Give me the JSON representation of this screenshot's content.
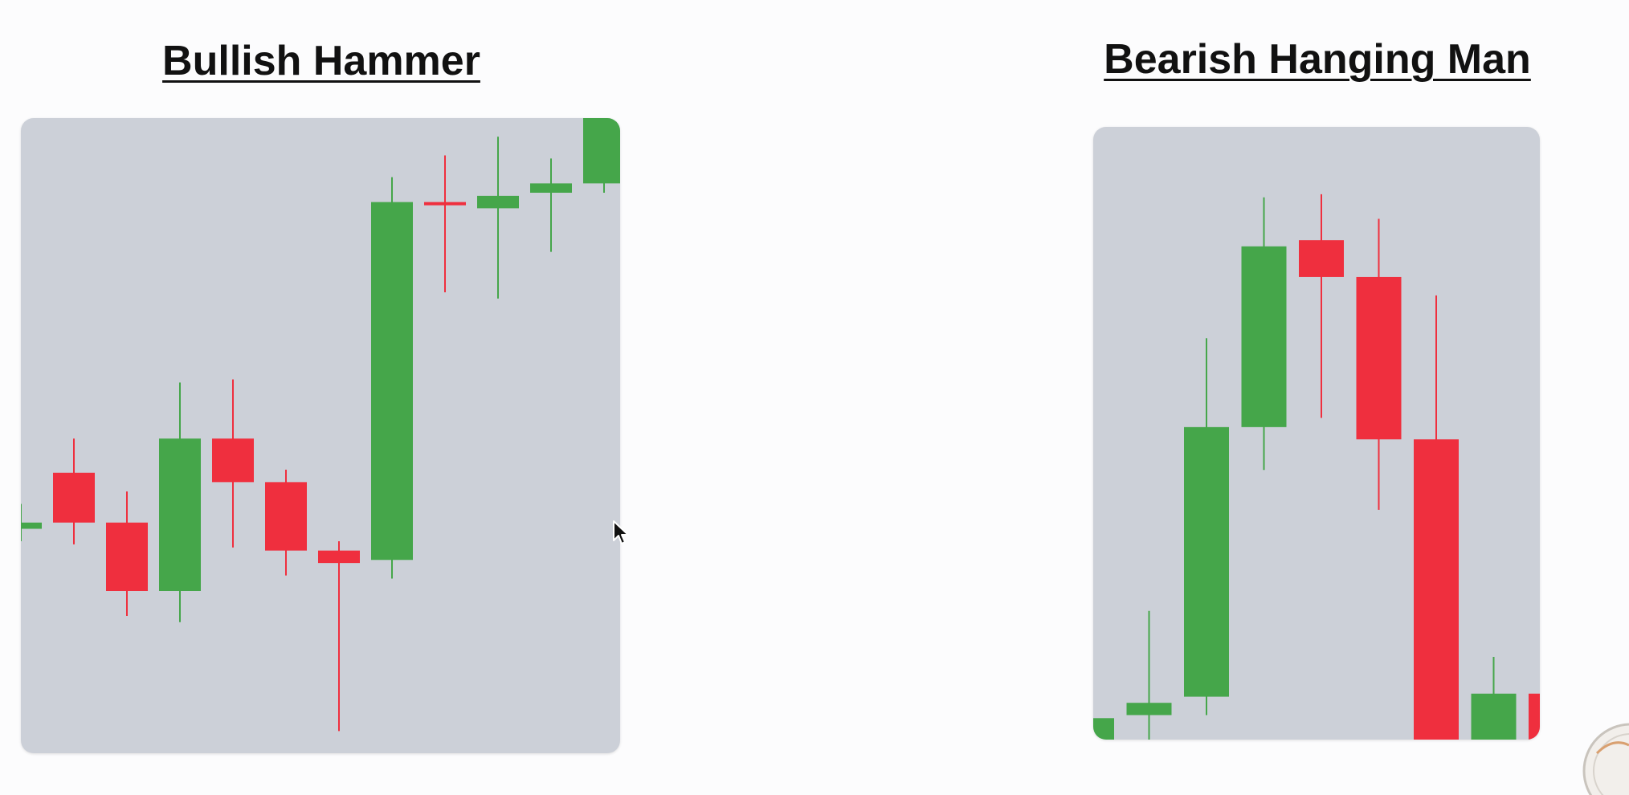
{
  "colors": {
    "bullish": "#45a64a",
    "bearish": "#ef2f3e",
    "panel_background": "#ccd0d8",
    "page_background": "#fcfcfd"
  },
  "chart_data": [
    {
      "type": "candlestick",
      "title": "Bullish Hammer",
      "xlabel": "",
      "ylabel": "",
      "grid": false,
      "ylim": [
        0,
        100
      ],
      "candles": [
        {
          "open": 34,
          "high": 38,
          "low": 32,
          "close": 35
        },
        {
          "open": 43,
          "high": 48.5,
          "low": 31.5,
          "close": 35
        },
        {
          "open": 35,
          "high": 40,
          "low": 20,
          "close": 24
        },
        {
          "open": 24,
          "high": 57.5,
          "low": 19,
          "close": 48.5
        },
        {
          "open": 48.5,
          "high": 58,
          "low": 31,
          "close": 41.5
        },
        {
          "open": 41.5,
          "high": 43.5,
          "low": 26.5,
          "close": 30.5
        },
        {
          "open": 30.5,
          "high": 32,
          "low": 1.5,
          "close": 28.5
        },
        {
          "open": 29,
          "high": 90.5,
          "low": 26,
          "close": 86.5
        },
        {
          "open": 86.5,
          "high": 94,
          "low": 72,
          "close": 86
        },
        {
          "open": 85.5,
          "high": 97,
          "low": 71,
          "close": 87.5
        },
        {
          "open": 88,
          "high": 93.5,
          "low": 78.5,
          "close": 89.5
        },
        {
          "open": 89.5,
          "high": 100,
          "low": 88,
          "close": 100
        }
      ]
    },
    {
      "type": "candlestick",
      "title": "Bearish Hanging Man",
      "xlabel": "",
      "ylabel": "",
      "grid": false,
      "ylim": [
        0,
        100
      ],
      "candles": [
        {
          "open": 0,
          "high": 3.5,
          "low": 0,
          "close": 3.5
        },
        {
          "open": 4,
          "high": 21,
          "low": 0,
          "close": 6
        },
        {
          "open": 7,
          "high": 65.5,
          "low": 4,
          "close": 51
        },
        {
          "open": 51,
          "high": 88.5,
          "low": 44,
          "close": 80.5
        },
        {
          "open": 81.5,
          "high": 89,
          "low": 52.5,
          "close": 75.5
        },
        {
          "open": 75.5,
          "high": 85,
          "low": 37.5,
          "close": 49
        },
        {
          "open": 49,
          "high": 72.5,
          "low": 0,
          "close": 0
        },
        {
          "open": 0,
          "high": 13.5,
          "low": 0,
          "close": 7.5
        },
        {
          "open": 7.5,
          "high": 7.5,
          "low": 0,
          "close": 0
        }
      ]
    }
  ]
}
